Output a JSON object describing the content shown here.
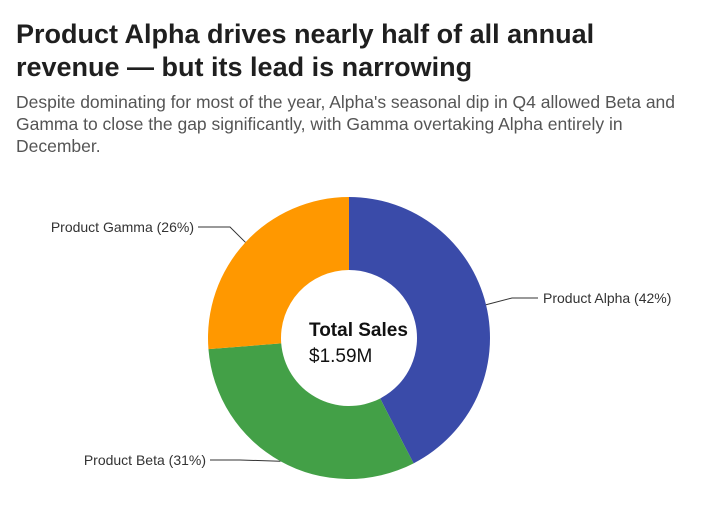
{
  "title": "Product Alpha drives nearly half of all annual revenue — but its lead is narrowing",
  "subtitle": "Despite dominating for most of the year, Alpha's seasonal dip in Q4 allowed Beta and Gamma to close the gap significantly, with Gamma overtaking Alpha entirely in December.",
  "chart_data": {
    "type": "pie",
    "variant": "donut",
    "center_label": {
      "title": "Total Sales",
      "value": "$1.59M"
    },
    "slices": [
      {
        "name": "Product Alpha",
        "value": 42,
        "label": "Product Alpha (42%)",
        "color": "#3a4ba9"
      },
      {
        "name": "Product Beta",
        "value": 31,
        "label": "Product Beta (31%)",
        "color": "#43a047"
      },
      {
        "name": "Product Gamma",
        "value": 26,
        "label": "Product Gamma (26%)",
        "color": "#ff9800"
      }
    ],
    "legend": "none"
  },
  "colors": {
    "background": "#ffffff",
    "title": "#1f1f1f",
    "subtitle": "#555555",
    "leader_line": "#333333"
  }
}
